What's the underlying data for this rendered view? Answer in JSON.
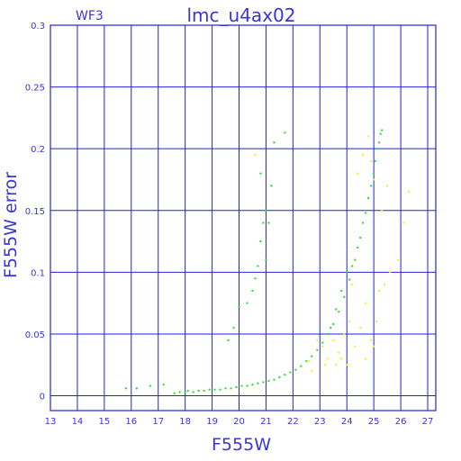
{
  "chart_data": {
    "type": "scatter",
    "title": "lmc_u4ax02",
    "chip_label": "WF3",
    "xlabel": "F555W",
    "ylabel": "F555W error",
    "xlim": [
      13,
      27.3
    ],
    "ylim": [
      -0.012,
      0.3
    ],
    "x_ticks": [
      13,
      14,
      15,
      16,
      17,
      18,
      19,
      20,
      21,
      22,
      23,
      24,
      25,
      26,
      27
    ],
    "y_ticks": [
      0,
      0.05,
      0.1,
      0.15,
      0.2,
      0.25,
      0.3
    ],
    "y_tick_labels": [
      "0",
      "0.05",
      "0.1",
      "0.15",
      "0.2",
      "0.25",
      "0.3"
    ],
    "grid": true,
    "colors": {
      "frame": "#2222dd",
      "grid": "#2222dd",
      "text": "#3a36d8",
      "green_series": "#22dd22",
      "yellow_series": "#eeee22"
    },
    "series": [
      {
        "color": "#22dd22",
        "points": [
          [
            15.8,
            0.006
          ],
          [
            16.2,
            0.006
          ],
          [
            16.7,
            0.008
          ],
          [
            17.2,
            0.009
          ],
          [
            17.6,
            0.002
          ],
          [
            17.8,
            0.003
          ],
          [
            18.0,
            0.003
          ],
          [
            18.1,
            0.004
          ],
          [
            18.3,
            0.003
          ],
          [
            18.5,
            0.004
          ],
          [
            18.7,
            0.004
          ],
          [
            18.9,
            0.005
          ],
          [
            19.1,
            0.005
          ],
          [
            19.3,
            0.005
          ],
          [
            19.5,
            0.006
          ],
          [
            19.7,
            0.006
          ],
          [
            19.9,
            0.007
          ],
          [
            20.1,
            0.008
          ],
          [
            20.3,
            0.008
          ],
          [
            20.5,
            0.009
          ],
          [
            20.7,
            0.01
          ],
          [
            20.9,
            0.011
          ],
          [
            21.1,
            0.012
          ],
          [
            21.3,
            0.013
          ],
          [
            21.5,
            0.015
          ],
          [
            21.7,
            0.017
          ],
          [
            21.9,
            0.019
          ],
          [
            22.1,
            0.021
          ],
          [
            22.3,
            0.024
          ],
          [
            22.5,
            0.028
          ],
          [
            22.7,
            0.032
          ],
          [
            22.9,
            0.037
          ],
          [
            23.1,
            0.043
          ],
          [
            23.3,
            0.05
          ],
          [
            23.5,
            0.058
          ],
          [
            23.7,
            0.068
          ],
          [
            23.9,
            0.08
          ],
          [
            24.1,
            0.094
          ],
          [
            24.3,
            0.11
          ],
          [
            24.5,
            0.128
          ],
          [
            24.7,
            0.148
          ],
          [
            24.9,
            0.17
          ],
          [
            25.05,
            0.19
          ],
          [
            25.2,
            0.205
          ],
          [
            25.3,
            0.215
          ],
          [
            25.25,
            0.212
          ],
          [
            23.8,
            0.085
          ],
          [
            24.0,
            0.1
          ],
          [
            24.4,
            0.12
          ],
          [
            24.6,
            0.14
          ],
          [
            24.8,
            0.16
          ],
          [
            25.0,
            0.18
          ],
          [
            23.6,
            0.07
          ],
          [
            23.4,
            0.055
          ],
          [
            24.2,
            0.105
          ],
          [
            25.1,
            0.2
          ],
          [
            19.6,
            0.045
          ],
          [
            19.8,
            0.055
          ],
          [
            20.0,
            0.072
          ],
          [
            20.3,
            0.075
          ],
          [
            20.5,
            0.085
          ],
          [
            20.6,
            0.095
          ],
          [
            20.7,
            0.105
          ],
          [
            20.8,
            0.125
          ],
          [
            20.9,
            0.14
          ],
          [
            21.0,
            0.15
          ],
          [
            21.0,
            0.11
          ],
          [
            21.2,
            0.17
          ],
          [
            21.3,
            0.205
          ],
          [
            21.7,
            0.213
          ],
          [
            20.8,
            0.18
          ],
          [
            21.1,
            0.14
          ]
        ]
      },
      {
        "color": "#eeee22",
        "points": [
          [
            20.6,
            0.195
          ],
          [
            22.9,
            0.045
          ],
          [
            23.1,
            0.04
          ],
          [
            23.3,
            0.03
          ],
          [
            23.5,
            0.045
          ],
          [
            23.7,
            0.035
          ],
          [
            23.9,
            0.05
          ],
          [
            24.1,
            0.06
          ],
          [
            24.3,
            0.04
          ],
          [
            24.5,
            0.055
          ],
          [
            24.7,
            0.075
          ],
          [
            24.9,
            0.045
          ],
          [
            25.0,
            0.04
          ],
          [
            25.2,
            0.085
          ],
          [
            25.4,
            0.09
          ],
          [
            25.6,
            0.1
          ],
          [
            25.3,
            0.15
          ],
          [
            25.5,
            0.17
          ],
          [
            24.8,
            0.21
          ],
          [
            24.9,
            0.19
          ],
          [
            25.0,
            0.175
          ],
          [
            24.6,
            0.195
          ],
          [
            24.4,
            0.18
          ],
          [
            23.8,
            0.03
          ],
          [
            23.2,
            0.025
          ],
          [
            22.6,
            0.028
          ],
          [
            22.7,
            0.02
          ],
          [
            26.1,
            0.14
          ],
          [
            26.3,
            0.165
          ],
          [
            25.9,
            0.11
          ],
          [
            24.7,
            0.03
          ],
          [
            24.0,
            0.025
          ],
          [
            25.1,
            0.06
          ],
          [
            24.2,
            0.09
          ],
          [
            23.6,
            0.025
          ]
        ]
      }
    ]
  }
}
